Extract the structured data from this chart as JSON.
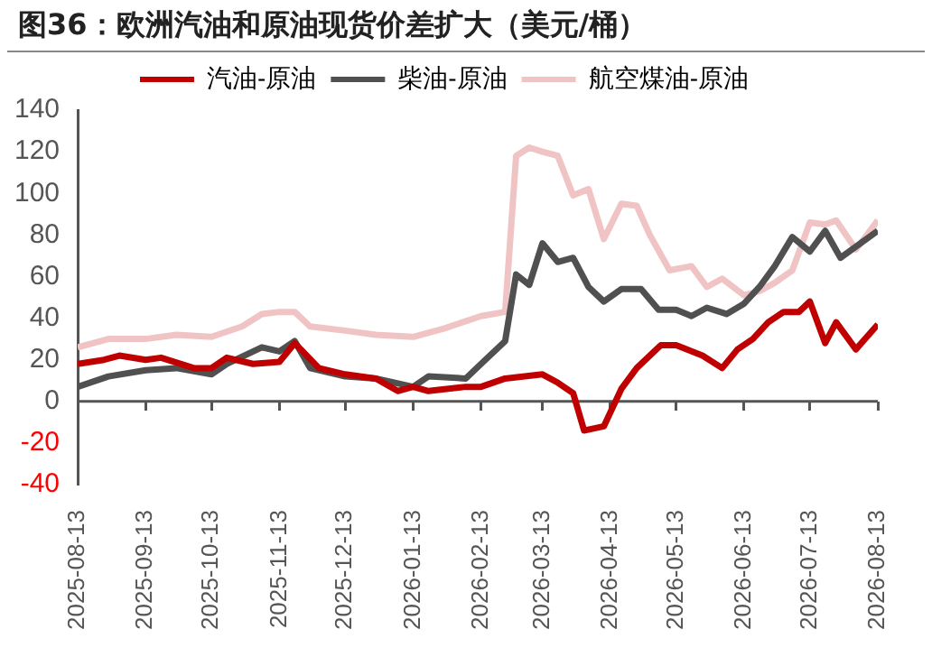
{
  "chart_data": {
    "type": "line",
    "title": "图36：欧洲汽油和原油现货价差扩大（美元/桶）",
    "series": [
      {
        "name": "汽油-原油",
        "color": "#c00000",
        "x": [
          "2025-08-13",
          "2025-08-25",
          "2025-09-01",
          "2025-09-13",
          "2025-09-20",
          "2025-10-05",
          "2025-10-13",
          "2025-10-20",
          "2025-11-01",
          "2025-11-13",
          "2025-11-20",
          "2025-12-01",
          "2025-12-13",
          "2025-12-27",
          "2026-01-06",
          "2026-01-13",
          "2026-01-20",
          "2026-02-06",
          "2026-02-13",
          "2026-02-24",
          "2026-03-13",
          "2026-03-20",
          "2026-03-27",
          "2026-04-01",
          "2026-04-10",
          "2026-04-18",
          "2026-04-25",
          "2026-05-06",
          "2026-05-13",
          "2026-05-25",
          "2026-06-03",
          "2026-06-10",
          "2026-06-17",
          "2026-06-24",
          "2026-07-01",
          "2026-07-08",
          "2026-07-13",
          "2026-07-20",
          "2026-07-25",
          "2026-08-03",
          "2026-08-13"
        ],
        "values": [
          18,
          20,
          22,
          20,
          21,
          16,
          16,
          21,
          18,
          19,
          28,
          16,
          13,
          11,
          5,
          7,
          5,
          7,
          7,
          11,
          13,
          9,
          4,
          -14,
          -12,
          6,
          16,
          27,
          27,
          22,
          16,
          25,
          30,
          38,
          43,
          43,
          48,
          28,
          38,
          25,
          37
        ]
      },
      {
        "name": "柴油-原油",
        "color": "#505050",
        "x": [
          "2025-08-13",
          "2025-08-27",
          "2025-09-13",
          "2025-09-27",
          "2025-10-13",
          "2025-10-20",
          "2025-11-05",
          "2025-11-13",
          "2025-11-20",
          "2025-11-27",
          "2025-12-13",
          "2025-12-27",
          "2026-01-13",
          "2026-01-20",
          "2026-02-06",
          "2026-02-13",
          "2026-02-24",
          "2026-03-01",
          "2026-03-07",
          "2026-03-13",
          "2026-03-20",
          "2026-03-27",
          "2026-04-03",
          "2026-04-10",
          "2026-04-18",
          "2026-04-27",
          "2026-05-05",
          "2026-05-13",
          "2026-05-20",
          "2026-05-27",
          "2026-06-05",
          "2026-06-13",
          "2026-06-20",
          "2026-06-27",
          "2026-07-05",
          "2026-07-13",
          "2026-07-20",
          "2026-07-27",
          "2026-08-13"
        ],
        "values": [
          7,
          12,
          15,
          16,
          13,
          18,
          26,
          24,
          29,
          16,
          12,
          11,
          7,
          12,
          11,
          18,
          29,
          61,
          56,
          76,
          67,
          69,
          55,
          48,
          54,
          54,
          44,
          44,
          41,
          45,
          42,
          47,
          55,
          65,
          79,
          72,
          82,
          69,
          82
        ]
      },
      {
        "name": "航空煤油-原油",
        "color": "#f0c4c4",
        "x": [
          "2025-08-13",
          "2025-08-27",
          "2025-09-13",
          "2025-09-27",
          "2025-10-13",
          "2025-10-27",
          "2025-11-05",
          "2025-11-13",
          "2025-11-20",
          "2025-11-27",
          "2025-12-13",
          "2025-12-27",
          "2026-01-13",
          "2026-01-27",
          "2026-02-13",
          "2026-02-24",
          "2026-03-01",
          "2026-03-07",
          "2026-03-13",
          "2026-03-20",
          "2026-03-27",
          "2026-04-03",
          "2026-04-10",
          "2026-04-18",
          "2026-04-25",
          "2026-05-01",
          "2026-05-10",
          "2026-05-20",
          "2026-05-27",
          "2026-06-03",
          "2026-06-13",
          "2026-06-20",
          "2026-06-27",
          "2026-07-05",
          "2026-07-13",
          "2026-07-20",
          "2026-07-25",
          "2026-08-03",
          "2026-08-13"
        ],
        "values": [
          26,
          30,
          30,
          32,
          31,
          36,
          42,
          43,
          43,
          36,
          34,
          32,
          31,
          35,
          41,
          43,
          118,
          122,
          120,
          118,
          99,
          102,
          78,
          95,
          94,
          80,
          63,
          65,
          55,
          59,
          51,
          53,
          57,
          63,
          86,
          85,
          87,
          73,
          87
        ]
      }
    ],
    "xlim": [
      "2025-08-13",
      "2026-08-13"
    ],
    "xticks": [
      "2025-08-13",
      "2025-09-13",
      "2025-10-13",
      "2025-11-13",
      "2025-12-13",
      "2026-01-13",
      "2026-02-13",
      "2026-03-13",
      "2026-04-13",
      "2026-05-13",
      "2026-06-13",
      "2026-07-13",
      "2026-08-13"
    ],
    "ylim": [
      -40,
      140
    ],
    "yticks": [
      -40,
      -20,
      0,
      20,
      40,
      60,
      80,
      100,
      120,
      140
    ],
    "ref_lines": [
      {
        "axis": "y",
        "value": 0,
        "color": "#555555",
        "line_style": "solid"
      }
    ],
    "legend": "top",
    "grid": false,
    "marker": "none",
    "line_style": "solid"
  }
}
